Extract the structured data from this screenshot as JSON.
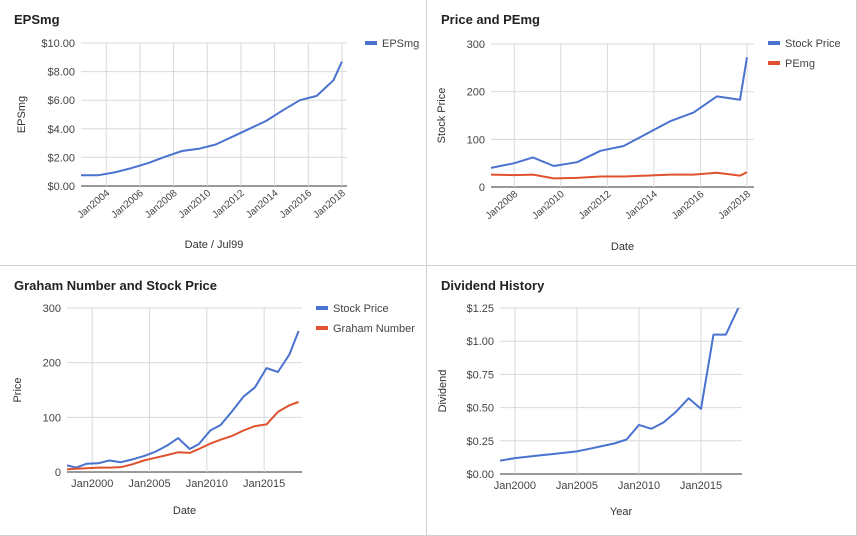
{
  "charts": [
    {
      "id": "eps",
      "chart_data": {
        "type": "line",
        "title": "EPSmg",
        "xlabel": "Date / Jul99",
        "ylabel": "EPSmg",
        "ylim": [
          0,
          10
        ],
        "yticks": [
          0,
          2,
          4,
          6,
          8,
          10
        ],
        "ytick_labels": [
          "$0.00",
          "$2.00",
          "$4.00",
          "$6.00",
          "$8.00",
          "$10.00"
        ],
        "xlim": [
          2002.5,
          2018.3
        ],
        "xticks": [
          2004,
          2006,
          2008,
          2010,
          2012,
          2014,
          2016,
          2018
        ],
        "xtick_labels": [
          "Jan2004",
          "Jan2006",
          "Jan2008",
          "Jan2010",
          "Jan2012",
          "Jan2014",
          "Jan2016",
          "Jan2018"
        ],
        "grid": true,
        "legend": "top-right",
        "series": [
          {
            "name": "EPSmg",
            "color": "#4a72cf",
            "x": [
              2002.5,
              2003.5,
              2004.5,
              2005.5,
              2006.5,
              2007.5,
              2008.5,
              2009.5,
              2010.5,
              2011.5,
              2012.5,
              2013.5,
              2014.5,
              2015.5,
              2016.5,
              2017.5,
              2018.0
            ],
            "y": [
              0.75,
              0.75,
              0.95,
              1.25,
              1.6,
              2.05,
              2.45,
              2.6,
              2.9,
              3.45,
              4.0,
              4.55,
              5.3,
              6.0,
              6.3,
              7.4,
              8.7
            ]
          }
        ]
      }
    },
    {
      "id": "price_pe",
      "chart_data": {
        "type": "line",
        "title": "Price and PEmg",
        "xlabel": "Date",
        "ylabel": "Stock Price",
        "ylim": [
          0,
          300
        ],
        "yticks": [
          0,
          100,
          200,
          300
        ],
        "ytick_labels": [
          "0",
          "100",
          "200",
          "300"
        ],
        "xlim": [
          2007,
          2018.3
        ],
        "xticks": [
          2008,
          2010,
          2012,
          2014,
          2016,
          2018
        ],
        "xtick_labels": [
          "Jan2008",
          "Jan2010",
          "Jan2012",
          "Jan2014",
          "Jan2016",
          "Jan2018"
        ],
        "grid": true,
        "legend": "top-right",
        "series": [
          {
            "name": "Stock Price",
            "color": "#4a72cf",
            "x": [
              2007.0,
              2008.0,
              2008.8,
              2009.7,
              2010.7,
              2011.7,
              2012.7,
              2013.7,
              2014.7,
              2015.7,
              2016.7,
              2017.7,
              2018.0
            ],
            "y": [
              40,
              50,
              62,
              44,
              52,
              76,
              86,
              112,
              138,
              156,
              190,
              183,
              272
            ]
          },
          {
            "name": "PEmg",
            "color": "#e0522e",
            "x": [
              2007.0,
              2008.0,
              2008.8,
              2009.7,
              2010.7,
              2011.7,
              2012.7,
              2013.7,
              2014.7,
              2015.7,
              2016.7,
              2017.7,
              2018.0
            ],
            "y": [
              26,
              25,
              26,
              18,
              19,
              22,
              22,
              24,
              26,
              26,
              30,
              24,
              31
            ]
          }
        ]
      }
    },
    {
      "id": "graham",
      "chart_data": {
        "type": "line",
        "title": "Graham Number and Stock Price",
        "xlabel": "Date",
        "ylabel": "Price",
        "ylim": [
          0,
          300
        ],
        "yticks": [
          0,
          100,
          200,
          300
        ],
        "ytick_labels": [
          "0",
          "100",
          "200",
          "300"
        ],
        "xlim": [
          1997.8,
          2018.3
        ],
        "xticks": [
          2000,
          2005,
          2010,
          2015
        ],
        "xtick_labels": [
          "Jan2000",
          "Jan2005",
          "Jan2010",
          "Jan2015"
        ],
        "grid": true,
        "legend": "top-right",
        "series": [
          {
            "name": "Stock Price",
            "color": "#4a72cf",
            "x": [
              1997.8,
              1998.6,
              1999.5,
              2000.5,
              2001.5,
              2002.5,
              2003.5,
              2004.5,
              2005.5,
              2006.5,
              2007.5,
              2008.5,
              2009.3,
              2010.3,
              2011.2,
              2012.2,
              2013.2,
              2014.2,
              2015.2,
              2016.2,
              2017.2,
              2018.0
            ],
            "y": [
              12,
              8,
              15,
              16,
              21,
              18,
              23,
              29,
              37,
              48,
              62,
              42,
              51,
              76,
              86,
              111,
              138,
              155,
              190,
              183,
              215,
              258
            ]
          },
          {
            "name": "Graham Number",
            "color": "#e0522e",
            "x": [
              1997.8,
              1998.6,
              1999.5,
              2000.5,
              2001.5,
              2002.5,
              2003.5,
              2004.5,
              2005.5,
              2006.5,
              2007.5,
              2008.5,
              2009.3,
              2010.3,
              2011.2,
              2012.2,
              2013.2,
              2014.2,
              2015.2,
              2016.2,
              2017.2,
              2018.0
            ],
            "y": [
              5,
              6,
              7,
              8,
              8,
              9,
              14,
              21,
              26,
              31,
              36,
              35,
              42,
              52,
              59,
              66,
              76,
              84,
              87,
              110,
              122,
              128
            ]
          }
        ]
      }
    },
    {
      "id": "dividend",
      "chart_data": {
        "type": "line",
        "title": "Dividend History",
        "xlabel": "Year",
        "ylabel": "Dividend",
        "ylim": [
          0,
          1.25
        ],
        "yticks": [
          0,
          0.25,
          0.5,
          0.75,
          1.0,
          1.25
        ],
        "ytick_labels": [
          "$0.00",
          "$0.25",
          "$0.50",
          "$0.75",
          "$1.00",
          "$1.25"
        ],
        "xlim": [
          1998.8,
          2018.3
        ],
        "xticks": [
          2000,
          2005,
          2010,
          2015
        ],
        "xtick_labels": [
          "Jan2000",
          "Jan2005",
          "Jan2010",
          "Jan2015"
        ],
        "grid": true,
        "legend": "none",
        "series": [
          {
            "name": "",
            "color": "#4a72cf",
            "x": [
              1998.8,
              2000,
              2001,
              2002,
              2003,
              2004,
              2005,
              2006,
              2007,
              2008,
              2009,
              2010,
              2011,
              2012,
              2013,
              2014,
              2015,
              2016,
              2017,
              2018
            ],
            "y": [
              0.1,
              0.12,
              0.13,
              0.14,
              0.15,
              0.16,
              0.17,
              0.19,
              0.21,
              0.23,
              0.26,
              0.37,
              0.34,
              0.39,
              0.47,
              0.57,
              0.49,
              1.05,
              1.05,
              1.25
            ]
          }
        ]
      }
    }
  ]
}
